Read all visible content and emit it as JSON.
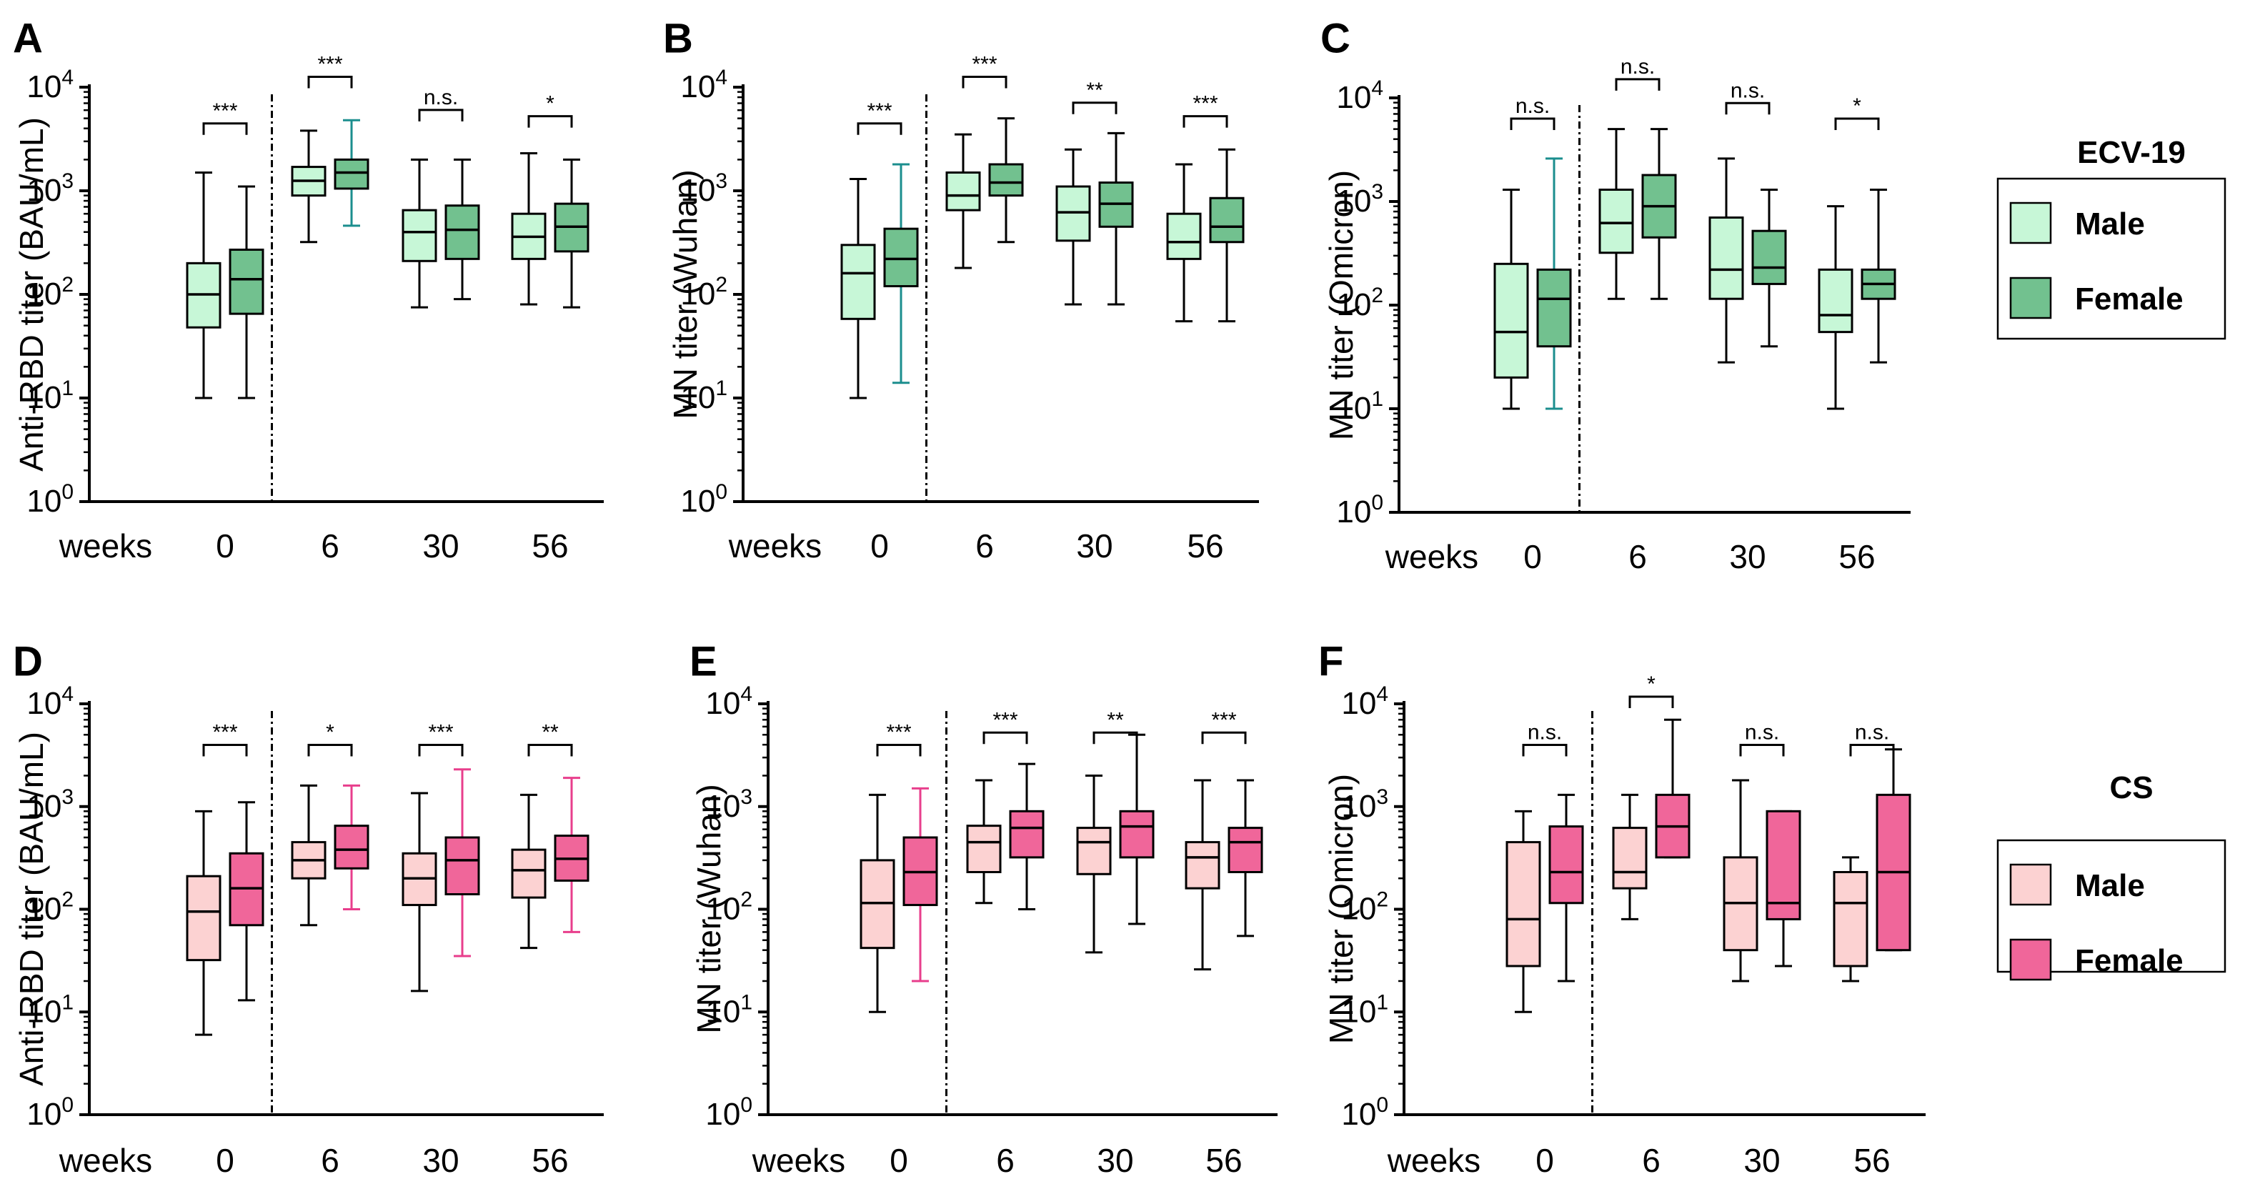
{
  "figure": {
    "legends": [
      {
        "title": "ECV-19",
        "entries": [
          {
            "label": "Male",
            "color": "#c7f7d7"
          },
          {
            "label": "Female",
            "color": "#72c18f"
          }
        ]
      },
      {
        "title": "CS",
        "entries": [
          {
            "label": "Male",
            "color": "#fcd2d2"
          },
          {
            "label": "Female",
            "color": "#f0669a"
          }
        ]
      }
    ]
  },
  "chart_data": [
    {
      "panel": "A",
      "type": "box",
      "cohort": "ECV-19",
      "ylabel": "Anti-RBD titer (BAU/mL)",
      "yscale": "log10",
      "ylim_exp": [
        0,
        4
      ],
      "xlabel": "weeks",
      "categories": [
        "0",
        "6",
        "30",
        "56"
      ],
      "series_colors": {
        "Male": "#c7f7d7",
        "Female": "#72c18f"
      },
      "boxes": [
        [
          {
            "min": 10,
            "q1": 48,
            "median": 100,
            "q3": 200,
            "max": 1500
          },
          {
            "min": 10,
            "q1": 65,
            "median": 140,
            "q3": 270,
            "max": 1100
          }
        ],
        [
          {
            "min": 320,
            "q1": 900,
            "median": 1250,
            "q3": 1700,
            "max": 3800
          },
          {
            "min": 460,
            "q1": 1050,
            "median": 1500,
            "q3": 2000,
            "max": 4800,
            "whisker_color": "#1b8e8e"
          }
        ],
        [
          {
            "min": 75,
            "q1": 210,
            "median": 400,
            "q3": 650,
            "max": 2000
          },
          {
            "min": 90,
            "q1": 220,
            "median": 420,
            "q3": 720,
            "max": 2000
          }
        ],
        [
          {
            "min": 80,
            "q1": 220,
            "median": 360,
            "q3": 600,
            "max": 2300
          },
          {
            "min": 75,
            "q1": 260,
            "median": 450,
            "q3": 750,
            "max": 2000
          }
        ]
      ],
      "significance": [
        "***",
        "***",
        "n.s.",
        "*"
      ],
      "sig_exp": [
        3.65,
        4.1,
        3.78,
        3.72
      ]
    },
    {
      "panel": "B",
      "type": "box",
      "cohort": "ECV-19",
      "ylabel": "MN titer (Wuhan)",
      "yscale": "log10",
      "ylim_exp": [
        0,
        4
      ],
      "xlabel": "weeks",
      "categories": [
        "0",
        "6",
        "30",
        "56"
      ],
      "series_colors": {
        "Male": "#c7f7d7",
        "Female": "#72c18f"
      },
      "boxes": [
        [
          {
            "min": 10,
            "q1": 58,
            "median": 160,
            "q3": 300,
            "max": 1300
          },
          {
            "min": 14,
            "q1": 120,
            "median": 220,
            "q3": 430,
            "max": 1800,
            "whisker_color": "#1b8e8e"
          }
        ],
        [
          {
            "min": 180,
            "q1": 650,
            "median": 900,
            "q3": 1500,
            "max": 3500
          },
          {
            "min": 320,
            "q1": 900,
            "median": 1200,
            "q3": 1800,
            "max": 5000
          }
        ],
        [
          {
            "min": 80,
            "q1": 330,
            "median": 620,
            "q3": 1100,
            "max": 2500
          },
          {
            "min": 80,
            "q1": 450,
            "median": 750,
            "q3": 1200,
            "max": 3600
          }
        ],
        [
          {
            "min": 55,
            "q1": 220,
            "median": 320,
            "q3": 600,
            "max": 1800
          },
          {
            "min": 55,
            "q1": 320,
            "median": 450,
            "q3": 850,
            "max": 2500
          }
        ]
      ],
      "significance": [
        "***",
        "***",
        "**",
        "***"
      ],
      "sig_exp": [
        3.65,
        4.1,
        3.85,
        3.72
      ]
    },
    {
      "panel": "C",
      "type": "box",
      "cohort": "ECV-19",
      "ylabel": "MN titer (Omicron)",
      "yscale": "log10",
      "ylim_exp": [
        0,
        4
      ],
      "xlabel": "weeks",
      "categories": [
        "0",
        "6",
        "30",
        "56"
      ],
      "series_colors": {
        "Male": "#c7f7d7",
        "Female": "#72c18f"
      },
      "boxes": [
        [
          {
            "min": 10,
            "q1": 20,
            "median": 55,
            "q3": 250,
            "max": 1300
          },
          {
            "min": 10,
            "q1": 40,
            "median": 115,
            "q3": 220,
            "max": 2600,
            "whisker_color": "#1b8e8e"
          }
        ],
        [
          {
            "min": 115,
            "q1": 320,
            "median": 620,
            "q3": 1300,
            "max": 5000
          },
          {
            "min": 115,
            "q1": 450,
            "median": 900,
            "q3": 1800,
            "max": 5000
          }
        ],
        [
          {
            "min": 28,
            "q1": 115,
            "median": 220,
            "q3": 700,
            "max": 2600
          },
          {
            "min": 40,
            "q1": 160,
            "median": 230,
            "q3": 520,
            "max": 1300
          }
        ],
        [
          {
            "min": 10,
            "q1": 55,
            "median": 80,
            "q3": 220,
            "max": 900
          },
          {
            "min": 28,
            "q1": 115,
            "median": 160,
            "q3": 220,
            "max": 1300
          }
        ]
      ],
      "significance": [
        "n.s.",
        "n.s.",
        "n.s.",
        "*"
      ],
      "sig_exp": [
        3.8,
        4.18,
        3.95,
        3.8
      ]
    },
    {
      "panel": "D",
      "type": "box",
      "cohort": "CS",
      "ylabel": "Anti-RBD titer (BAU/mL)",
      "yscale": "log10",
      "ylim_exp": [
        0,
        4
      ],
      "xlabel": "weeks",
      "categories": [
        "0",
        "6",
        "30",
        "56"
      ],
      "series_colors": {
        "Male": "#fcd2d2",
        "Female": "#f0669a"
      },
      "boxes": [
        [
          {
            "min": 6,
            "q1": 32,
            "median": 95,
            "q3": 210,
            "max": 900
          },
          {
            "min": 13,
            "q1": 70,
            "median": 160,
            "q3": 350,
            "max": 1100
          }
        ],
        [
          {
            "min": 70,
            "q1": 200,
            "median": 300,
            "q3": 450,
            "max": 1600
          },
          {
            "min": 100,
            "q1": 250,
            "median": 380,
            "q3": 650,
            "max": 1600,
            "whisker_color": "#e83e8c"
          }
        ],
        [
          {
            "min": 16,
            "q1": 110,
            "median": 200,
            "q3": 350,
            "max": 1350
          },
          {
            "min": 35,
            "q1": 140,
            "median": 300,
            "q3": 500,
            "max": 2300,
            "whisker_color": "#e83e8c"
          }
        ],
        [
          {
            "min": 42,
            "q1": 130,
            "median": 240,
            "q3": 380,
            "max": 1300
          },
          {
            "min": 60,
            "q1": 190,
            "median": 310,
            "q3": 520,
            "max": 1900,
            "whisker_color": "#e83e8c"
          }
        ]
      ],
      "significance": [
        "***",
        "*",
        "***",
        "**"
      ],
      "sig_exp": [
        3.6,
        3.6,
        3.6,
        3.6
      ]
    },
    {
      "panel": "E",
      "type": "box",
      "cohort": "CS",
      "ylabel": "MN titer (Wuhan)",
      "yscale": "log10",
      "ylim_exp": [
        0,
        4
      ],
      "xlabel": "weeks",
      "categories": [
        "0",
        "6",
        "30",
        "56"
      ],
      "series_colors": {
        "Male": "#fcd2d2",
        "Female": "#f0669a"
      },
      "boxes": [
        [
          {
            "min": 10,
            "q1": 42,
            "median": 115,
            "q3": 300,
            "max": 1300
          },
          {
            "min": 20,
            "q1": 110,
            "median": 230,
            "q3": 500,
            "max": 1500,
            "whisker_color": "#e83e8c"
          }
        ],
        [
          {
            "min": 115,
            "q1": 230,
            "median": 450,
            "q3": 650,
            "max": 1800
          },
          {
            "min": 100,
            "q1": 320,
            "median": 620,
            "q3": 900,
            "max": 2600
          }
        ],
        [
          {
            "min": 38,
            "q1": 220,
            "median": 450,
            "q3": 620,
            "max": 2000
          },
          {
            "min": 72,
            "q1": 320,
            "median": 640,
            "q3": 900,
            "max": 5000
          }
        ],
        [
          {
            "min": 26,
            "q1": 160,
            "median": 320,
            "q3": 450,
            "max": 1800
          },
          {
            "min": 55,
            "q1": 230,
            "median": 450,
            "q3": 620,
            "max": 1800
          }
        ]
      ],
      "significance": [
        "***",
        "***",
        "**",
        "***"
      ],
      "sig_exp": [
        3.6,
        3.72,
        3.72,
        3.72
      ]
    },
    {
      "panel": "F",
      "type": "box",
      "cohort": "CS",
      "ylabel": "MN titer (Omicron)",
      "yscale": "log10",
      "ylim_exp": [
        0,
        4
      ],
      "xlabel": "weeks",
      "categories": [
        "0",
        "6",
        "30",
        "56"
      ],
      "series_colors": {
        "Male": "#fcd2d2",
        "Female": "#f0669a"
      },
      "boxes": [
        [
          {
            "min": 10,
            "q1": 28,
            "median": 80,
            "q3": 450,
            "max": 900
          },
          {
            "min": 20,
            "q1": 115,
            "median": 230,
            "q3": 640,
            "max": 1300
          }
        ],
        [
          {
            "min": 80,
            "q1": 160,
            "median": 230,
            "q3": 620,
            "max": 1300
          },
          {
            "min": 320,
            "q1": 320,
            "median": 640,
            "q3": 1300,
            "max": 7000
          }
        ],
        [
          {
            "min": 20,
            "q1": 40,
            "median": 115,
            "q3": 320,
            "max": 1800
          },
          {
            "min": 28,
            "q1": 80,
            "median": 115,
            "q3": 900,
            "max": 900
          }
        ],
        [
          {
            "min": 20,
            "q1": 28,
            "median": 115,
            "q3": 230,
            "max": 320
          },
          {
            "min": 40,
            "q1": 40,
            "median": 230,
            "q3": 1300,
            "max": 3600
          }
        ]
      ],
      "significance": [
        "n.s.",
        "*",
        "n.s.",
        "n.s."
      ],
      "sig_exp": [
        3.6,
        4.07,
        3.6,
        3.6
      ]
    }
  ]
}
